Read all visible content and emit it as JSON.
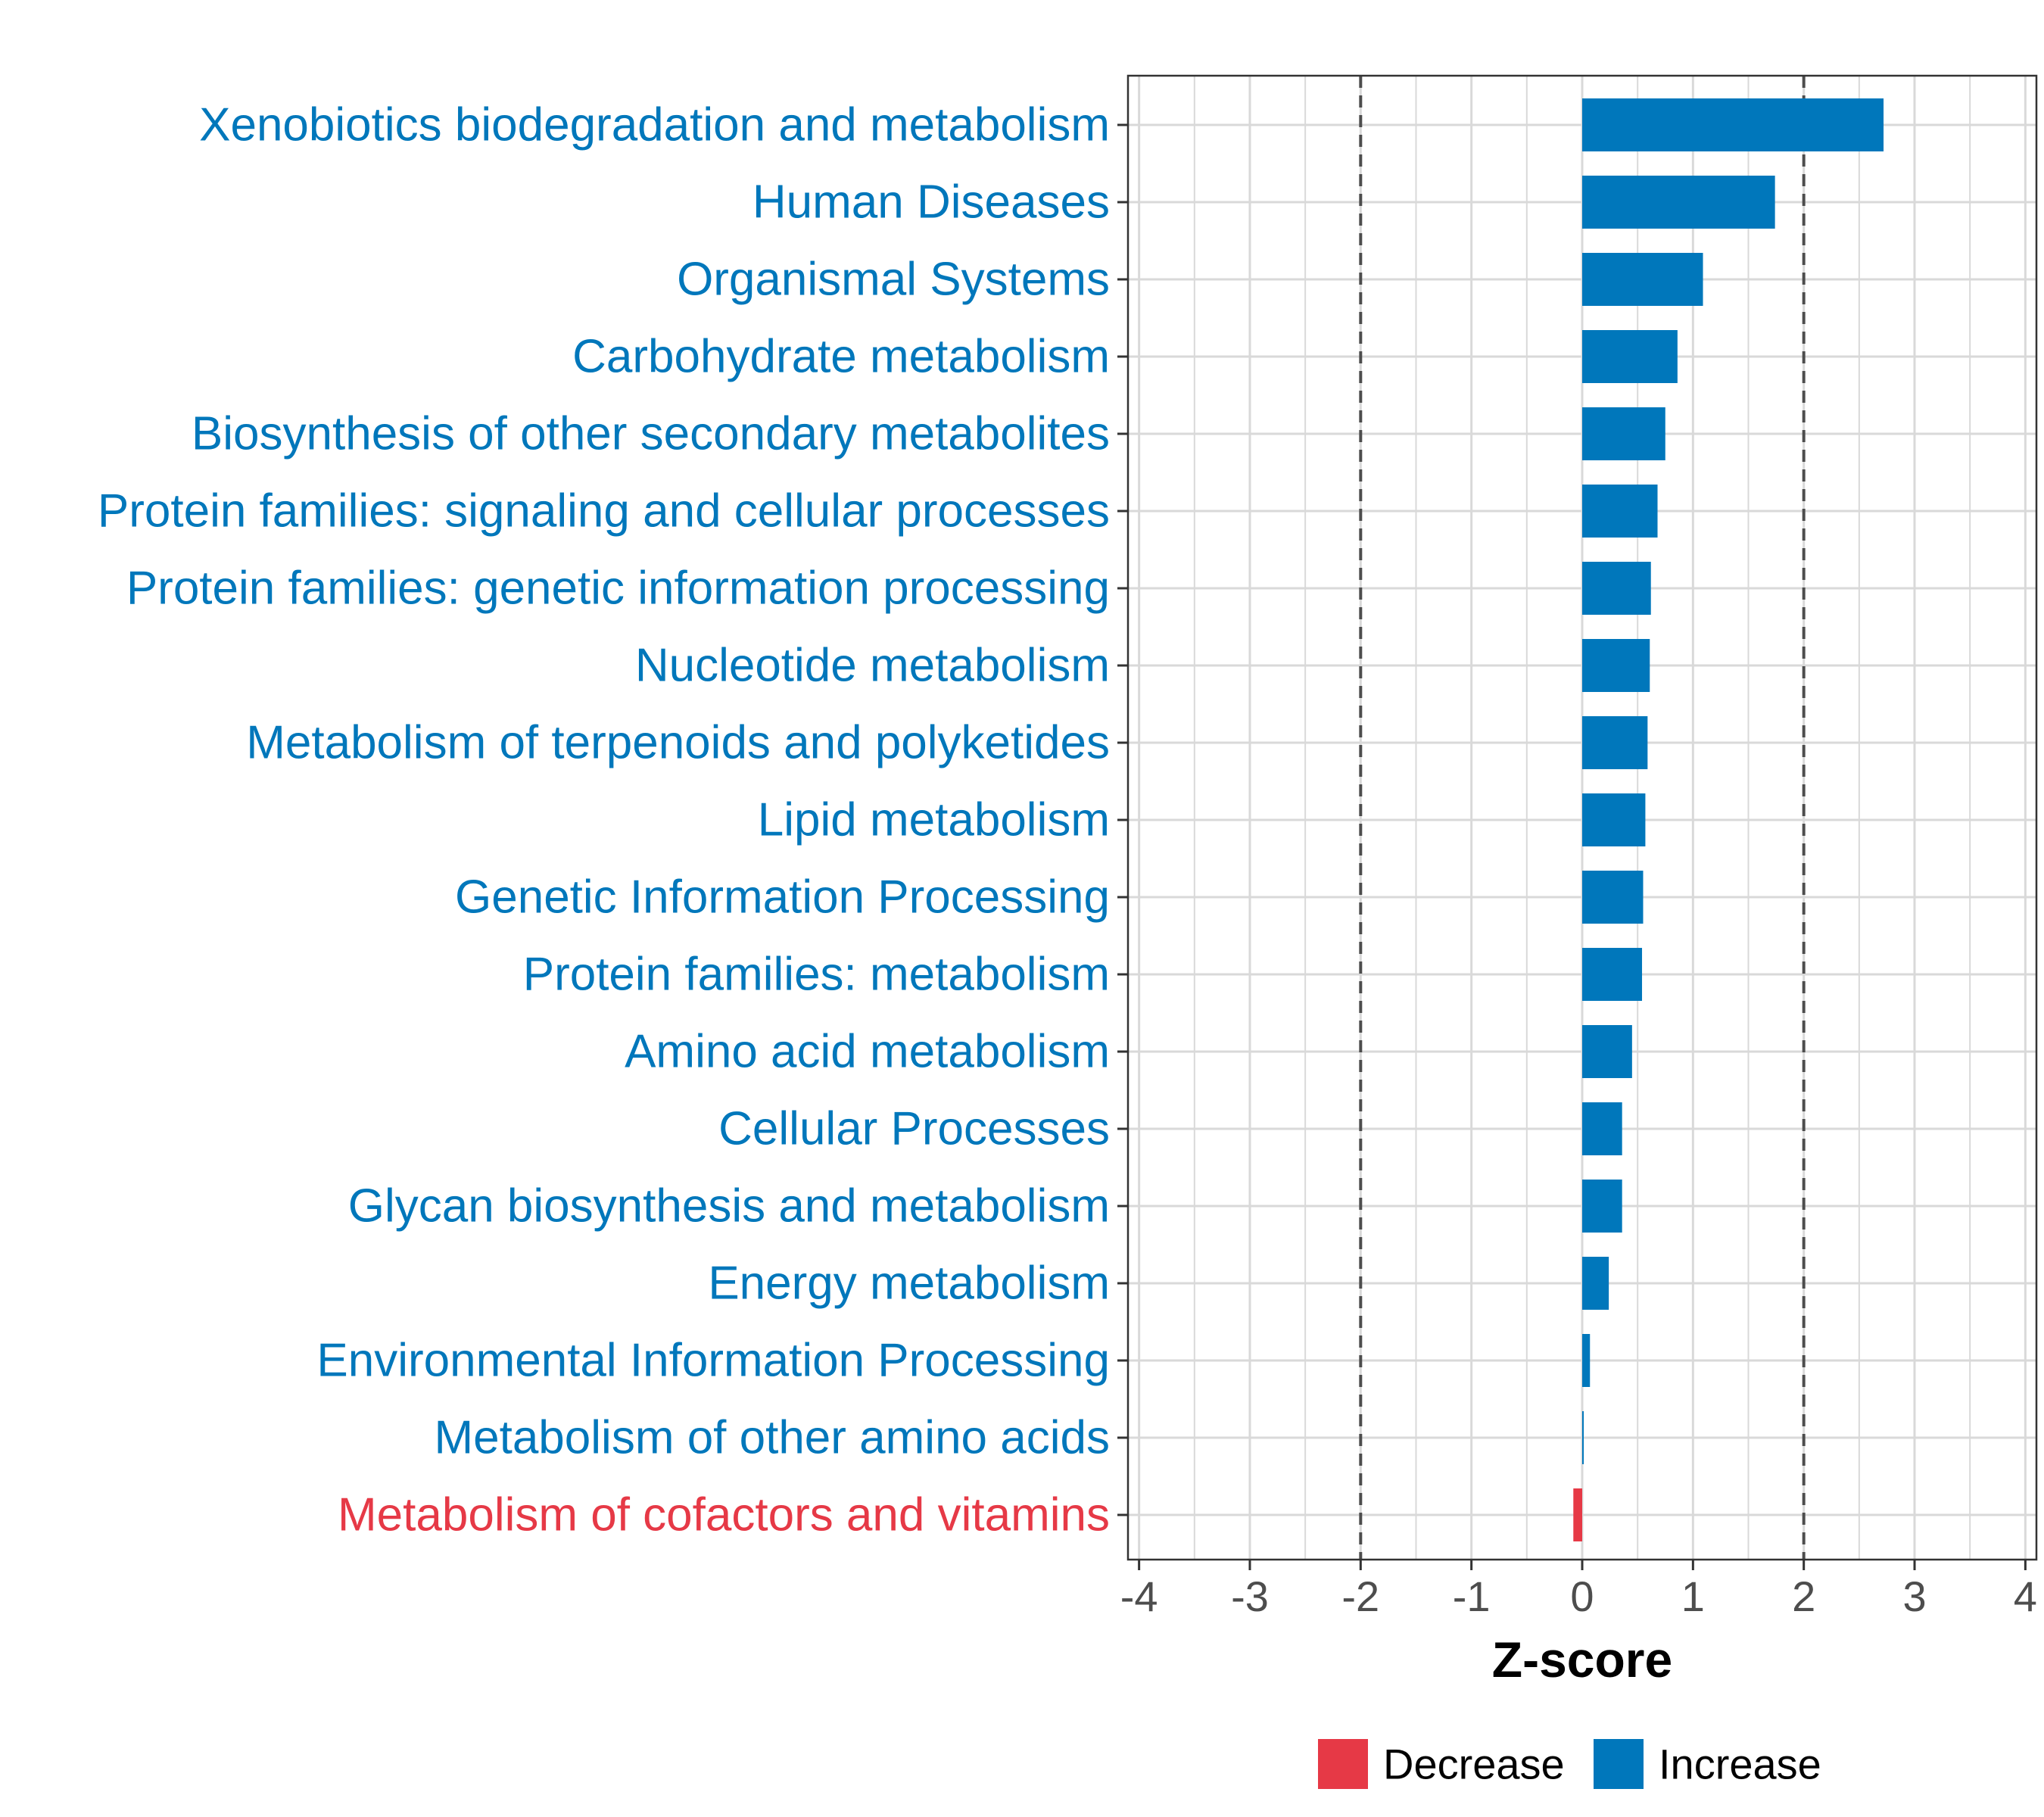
{
  "chart_data": {
    "type": "bar",
    "orientation": "horizontal",
    "categories": [
      "Xenobiotics biodegradation and metabolism",
      "Human Diseases",
      "Organismal Systems",
      "Carbohydrate metabolism",
      "Biosynthesis of other secondary metabolites",
      "Protein families: signaling and cellular processes",
      "Protein families: genetic information processing",
      "Nucleotide metabolism",
      "Metabolism of terpenoids and polyketides",
      "Lipid metabolism",
      "Genetic Information Processing",
      "Protein families: metabolism",
      "Amino acid metabolism",
      "Cellular Processes",
      "Glycan biosynthesis and metabolism",
      "Energy metabolism",
      "Environmental Information Processing",
      "Metabolism of other amino acids",
      "Metabolism of cofactors and vitamins"
    ],
    "values": [
      2.72,
      1.74,
      1.09,
      0.86,
      0.75,
      0.68,
      0.62,
      0.61,
      0.59,
      0.57,
      0.55,
      0.54,
      0.45,
      0.36,
      0.36,
      0.24,
      0.07,
      0.01,
      -0.08
    ],
    "groups": [
      "Increase",
      "Increase",
      "Increase",
      "Increase",
      "Increase",
      "Increase",
      "Increase",
      "Increase",
      "Increase",
      "Increase",
      "Increase",
      "Increase",
      "Increase",
      "Increase",
      "Increase",
      "Increase",
      "Increase",
      "Increase",
      "Decrease"
    ],
    "xlabel": "Z-score",
    "ylabel": "",
    "xlim": [
      -4.1,
      4.1
    ],
    "xticks": [
      -4,
      -3,
      -2,
      -1,
      0,
      1,
      2,
      3,
      4
    ],
    "xtick_labels": [
      "-4",
      "-3",
      "-2",
      "-1",
      "0",
      "1",
      "2",
      "3",
      "4"
    ],
    "reference_lines": [
      -2,
      2
    ],
    "grid": true,
    "legend": {
      "position": "bottom",
      "items": [
        {
          "label": "Decrease",
          "color": "#e63946"
        },
        {
          "label": "Increase",
          "color": "#0077bb"
        }
      ]
    }
  },
  "colors": {
    "increase": "#0077bb",
    "decrease": "#e63946",
    "grid": "#d9d9d9",
    "reference_line": "#4d4d4d",
    "panel_border": "#333333"
  }
}
